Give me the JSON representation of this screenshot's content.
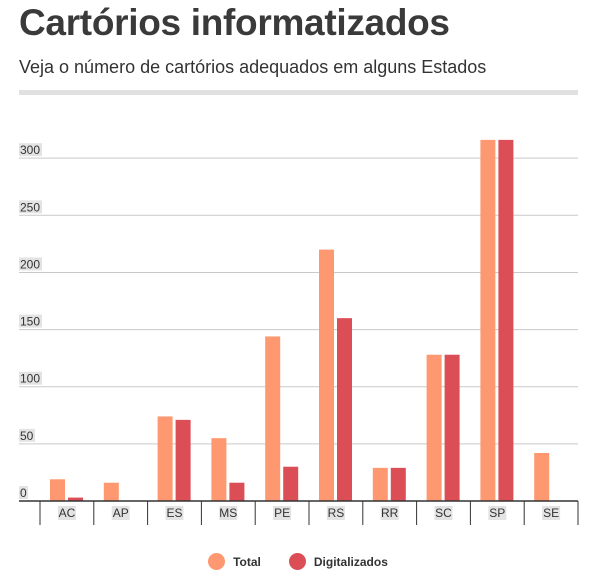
{
  "title": "Cartórios informatizados",
  "subtitle": "Veja o número de cartórios adequados em alguns Estados",
  "colors": {
    "total": "#fe9870",
    "digitalizados": "#dc4e56",
    "gridline": "#c9c9c9",
    "axis": "#333333",
    "tick_label_bg": "#e3e3e3"
  },
  "legend": [
    {
      "name": "Total",
      "color": "#fe9870"
    },
    {
      "name": "Digitalizados",
      "color": "#dc4e56"
    }
  ],
  "chart_data": {
    "type": "bar",
    "title": "Cartórios informatizados",
    "subtitle": "Veja o número de cartórios adequados em alguns Estados",
    "categories": [
      "AC",
      "AP",
      "ES",
      "MS",
      "PE",
      "RS",
      "RR",
      "SC",
      "SP",
      "SE"
    ],
    "series": [
      {
        "name": "Total",
        "values": [
          19,
          16,
          74,
          55,
          144,
          220,
          29,
          128,
          316,
          42
        ]
      },
      {
        "name": "Digitalizados",
        "values": [
          3,
          0,
          71,
          16,
          30,
          160,
          29,
          128,
          316,
          0
        ]
      }
    ],
    "yticks": [
      0,
      50,
      100,
      150,
      200,
      250,
      300
    ],
    "ylim": [
      0,
      316
    ],
    "grid": true,
    "legend_position": "bottom-center"
  }
}
